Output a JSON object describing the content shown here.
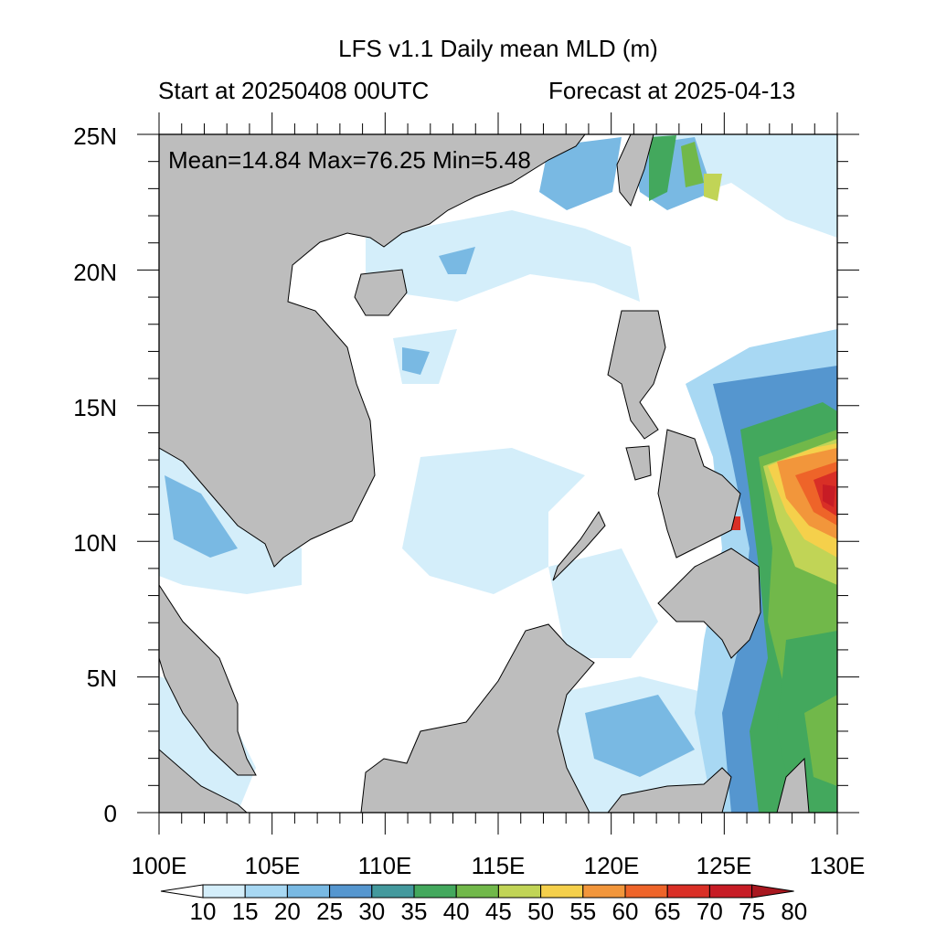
{
  "title": "LFS v1.1 Daily mean MLD (m)",
  "subtitle_left": "Start at 20250408 00UTC",
  "subtitle_right": "Forecast at 2025-04-13",
  "stats": "Mean=14.84  Max=76.25  Min=5.48",
  "lat_labels": [
    "25N",
    "20N",
    "15N",
    "10N",
    "5N",
    "0"
  ],
  "lon_labels": [
    "100E",
    "105E",
    "110E",
    "115E",
    "120E",
    "125E",
    "130E"
  ],
  "colorbar": {
    "labels": [
      "10",
      "15",
      "20",
      "25",
      "30",
      "35",
      "40",
      "45",
      "50",
      "55",
      "60",
      "65",
      "70",
      "75",
      "80"
    ],
    "colors": [
      "#ffffff",
      "#d4eefa",
      "#a8d8f3",
      "#79b9e3",
      "#5596cf",
      "#43999d",
      "#43a85d",
      "#71b84a",
      "#c1d456",
      "#f5d04b",
      "#f2963b",
      "#ee6429",
      "#d92f26",
      "#c71c25",
      "#a8171f"
    ]
  },
  "colors": {
    "land": "#bdbdbd",
    "ocean_base": "#ffffff"
  }
}
